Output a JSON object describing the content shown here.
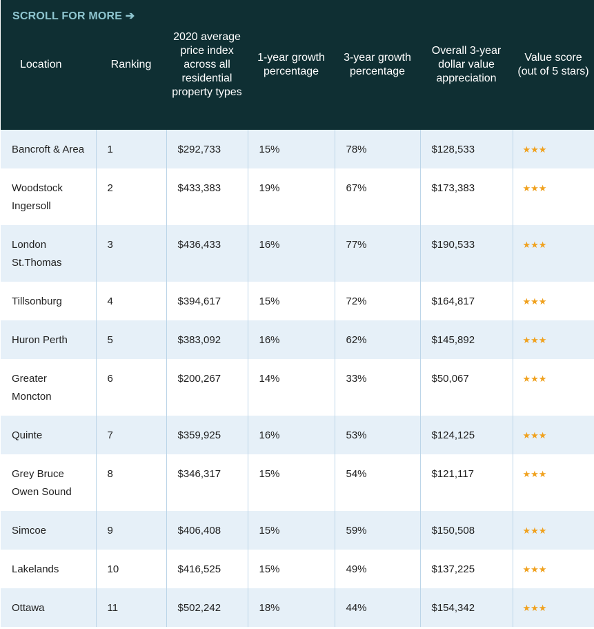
{
  "scroll_hint": "SCROLL FOR MORE ➔",
  "table": {
    "columns": [
      "Location",
      "Ranking",
      "2020 average price index across all residential property types",
      "1-year growth percentage",
      "3-year growth percentage",
      "Overall 3-year dollar value appreciation",
      "Value score (out of 5 stars)"
    ],
    "rows": [
      [
        [
          "Bancroft & Area"
        ],
        "1",
        "$292,733",
        "15%",
        "78%",
        "$128,533",
        "★★★"
      ],
      [
        [
          "Woodstock",
          "Ingersoll"
        ],
        "2",
        "$433,383",
        "19%",
        "67%",
        "$173,383",
        "★★★"
      ],
      [
        [
          "London",
          "St.Thomas"
        ],
        "3",
        "$436,433",
        "16%",
        "77%",
        "$190,533",
        "★★★"
      ],
      [
        [
          "Tillsonburg"
        ],
        "4",
        "$394,617",
        "15%",
        "72%",
        "$164,817",
        "★★★"
      ],
      [
        [
          "Huron Perth"
        ],
        "5",
        "$383,092",
        "16%",
        "62%",
        "$145,892",
        "★★★"
      ],
      [
        [
          "Greater",
          "Moncton"
        ],
        "6",
        "$200,267",
        "14%",
        "33%",
        "$50,067",
        "★★★"
      ],
      [
        [
          "Quinte"
        ],
        "7",
        "$359,925",
        "16%",
        "53%",
        "$124,125",
        "★★★"
      ],
      [
        [
          "Grey Bruce",
          "Owen Sound"
        ],
        "8",
        "$346,317",
        "15%",
        "54%",
        "$121,117",
        "★★★"
      ],
      [
        [
          "Simcoe"
        ],
        "9",
        "$406,408",
        "15%",
        "59%",
        "$150,508",
        "★★★"
      ],
      [
        [
          "Lakelands"
        ],
        "10",
        "$416,525",
        "15%",
        "49%",
        "$137,225",
        "★★★"
      ],
      [
        [
          "Ottawa"
        ],
        "11",
        "$502,242",
        "18%",
        "44%",
        "$154,342",
        "★★★"
      ]
    ]
  }
}
